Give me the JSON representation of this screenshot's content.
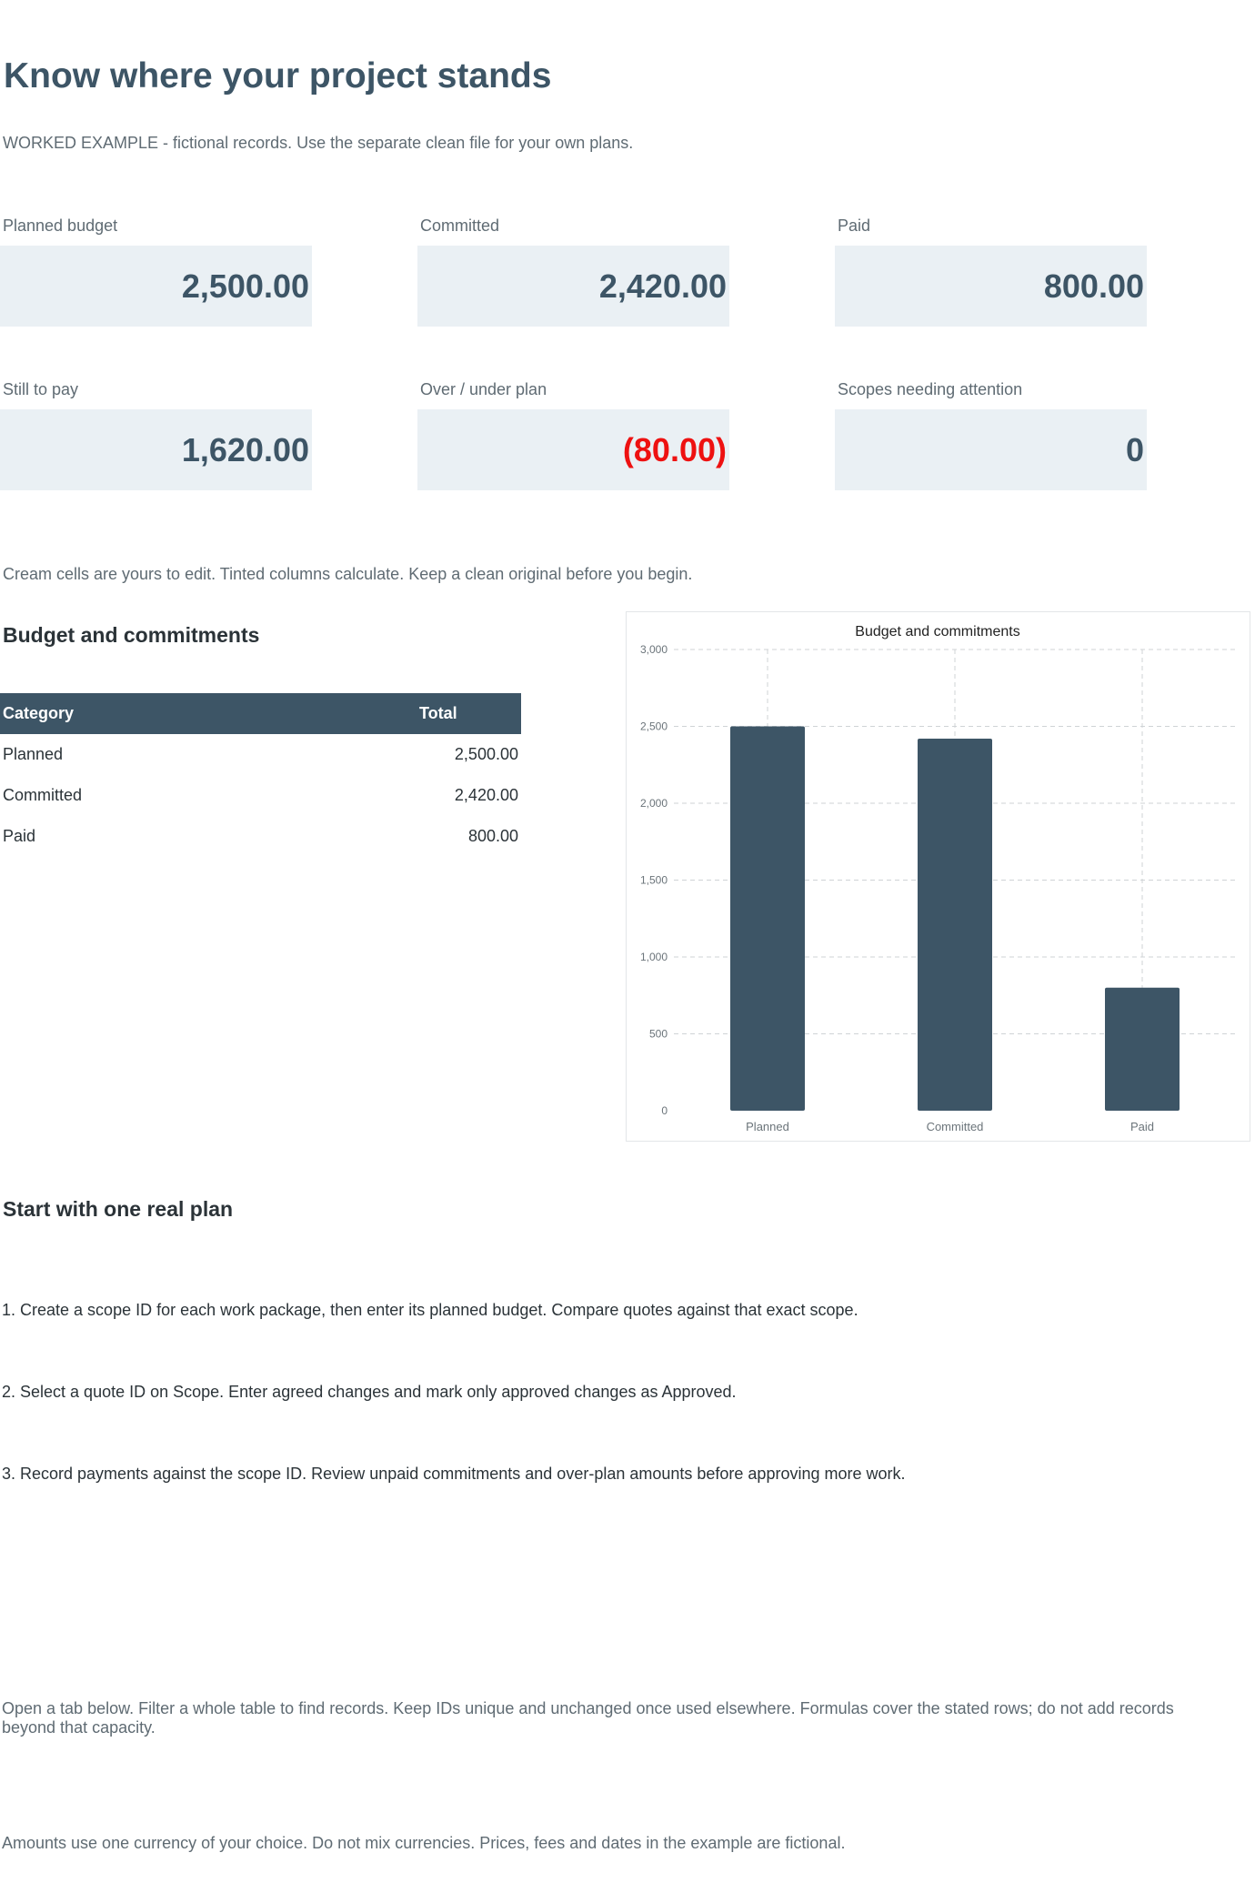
{
  "header": {
    "title": "Know where your project stands",
    "subtitle": "WORKED EXAMPLE - fictional records. Use the separate clean file for your own plans."
  },
  "kpis": [
    {
      "label": "Planned budget",
      "value": "2,500.00"
    },
    {
      "label": "Committed",
      "value": "2,420.00"
    },
    {
      "label": "Paid",
      "value": "800.00"
    },
    {
      "label": "Still to pay",
      "value": "1,620.00"
    },
    {
      "label": "Over / under plan",
      "value": "(80.00)"
    },
    {
      "label": "Scopes needing attention",
      "value": "0"
    }
  ],
  "colors": {
    "accent": "#3d5566",
    "kpi_background": "#eaf0f4",
    "negative": "#ee1111"
  },
  "edit_note": "Cream cells are yours to edit. Tinted columns calculate. Keep a clean original before you begin.",
  "budget_section": {
    "title": "Budget and commitments",
    "table": {
      "headers": [
        "Category",
        "Total"
      ],
      "rows": [
        {
          "category": "Planned",
          "total": "2,500.00"
        },
        {
          "category": "Committed",
          "total": "2,420.00"
        },
        {
          "category": "Paid",
          "total": "800.00"
        }
      ]
    }
  },
  "chart_data": {
    "type": "bar",
    "title": "Budget and commitments",
    "categories": [
      "Planned",
      "Committed",
      "Paid"
    ],
    "values": [
      2500,
      2420,
      800
    ],
    "ylim": [
      0,
      3000
    ],
    "yticks": [
      0,
      500,
      1000,
      1500,
      2000,
      2500,
      3000
    ],
    "ytick_labels": [
      "0",
      "500",
      "1,000",
      "1,500",
      "2,000",
      "2,500",
      "3,000"
    ],
    "grid": true,
    "legend": "none",
    "bar_color": "#3d5566"
  },
  "start_section": {
    "title": "Start with one real plan",
    "steps": [
      "1. Create a scope ID for each work package, then enter its planned budget. Compare quotes against that exact scope.",
      "2. Select a quote ID on Scope. Enter agreed changes and mark only approved changes as Approved.",
      "3. Record payments against the scope ID. Review unpaid commitments and over-plan amounts before approving more work."
    ]
  },
  "footer": {
    "tabs_note": "Open a tab below. Filter a whole table to find records. Keep IDs unique and unchanged once used elsewhere. Formulas cover the stated rows; do not add records beyond that capacity.",
    "currency_note": "Amounts use one currency of your choice. Do not mix currencies. Prices, fees and dates in the example are fictional."
  }
}
